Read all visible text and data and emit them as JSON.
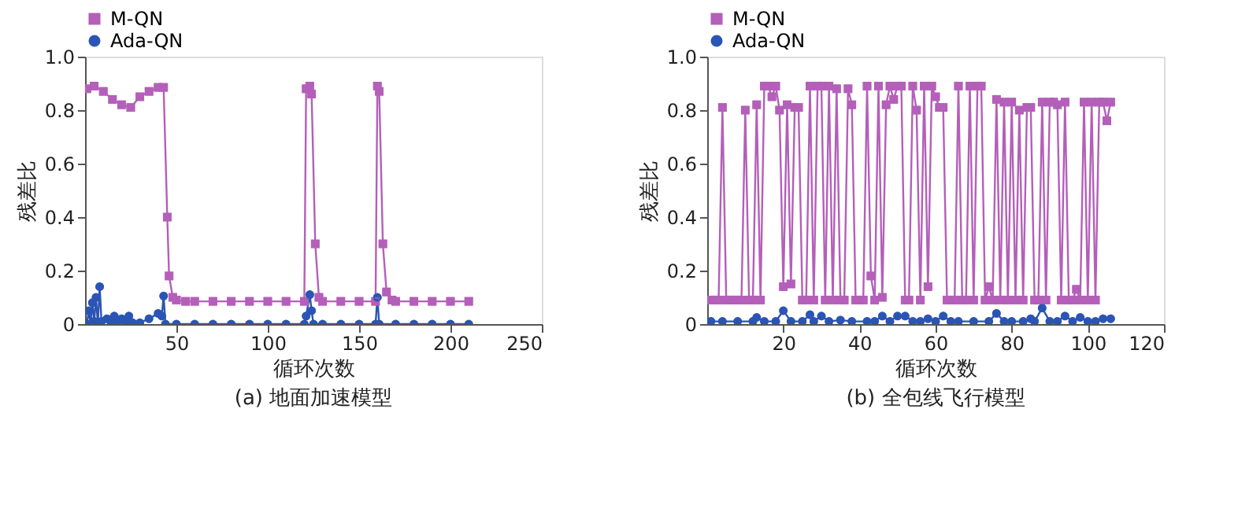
{
  "chart_data": [
    {
      "type": "line",
      "title": "(a) 地面加速模型",
      "xlabel": "循环次数",
      "ylabel": "残差比",
      "xlim": [
        0,
        250
      ],
      "xticks": [
        50,
        100,
        150,
        200,
        250
      ],
      "ylim": [
        0,
        1
      ],
      "yticks": [
        0,
        0.2,
        0.4,
        0.6,
        0.8,
        {
          "value": 1,
          "label": "1.0"
        }
      ],
      "grid": false,
      "legend": "top left",
      "series": [
        {
          "name": "M-QN",
          "color": "#b45fb9",
          "marker": "square",
          "x": [
            1,
            5,
            10,
            15,
            20,
            25,
            30,
            35,
            40,
            43,
            45,
            46,
            48,
            50,
            55,
            60,
            70,
            80,
            90,
            100,
            110,
            120,
            121,
            123,
            124,
            126,
            128,
            130,
            140,
            150,
            159,
            160,
            161,
            163,
            165,
            168,
            170,
            180,
            190,
            200,
            210
          ],
          "values": [
            0.88,
            0.89,
            0.87,
            0.84,
            0.82,
            0.81,
            0.85,
            0.87,
            0.885,
            0.885,
            0.4,
            0.18,
            0.1,
            0.09,
            0.085,
            0.085,
            0.085,
            0.085,
            0.085,
            0.085,
            0.085,
            0.085,
            0.88,
            0.89,
            0.86,
            0.3,
            0.1,
            0.085,
            0.085,
            0.085,
            0.085,
            0.89,
            0.87,
            0.3,
            0.12,
            0.09,
            0.085,
            0.085,
            0.085,
            0.085,
            0.085
          ]
        },
        {
          "name": "Ada-QN",
          "color": "#2b55b5",
          "marker": "circle",
          "x": [
            1,
            2,
            3,
            4,
            5,
            6,
            7,
            8,
            9,
            12,
            14,
            16,
            18,
            20,
            22,
            24,
            26,
            30,
            35,
            40,
            42,
            43,
            44,
            50,
            60,
            70,
            80,
            90,
            100,
            110,
            120,
            121,
            123,
            124,
            125,
            130,
            140,
            150,
            159,
            160,
            161,
            170,
            180,
            190,
            200,
            210
          ],
          "values": [
            0,
            0.05,
            0,
            0.08,
            0.01,
            0.1,
            0,
            0.14,
            0.01,
            0.02,
            0.01,
            0.03,
            0.01,
            0.02,
            0.01,
            0.03,
            0.005,
            0.005,
            0.02,
            0.04,
            0.03,
            0.105,
            0,
            0,
            0,
            0,
            0,
            0,
            0,
            0,
            0,
            0.03,
            0.11,
            0.05,
            0,
            0,
            0,
            0,
            0,
            0.1,
            0,
            0,
            0,
            0,
            0,
            0
          ]
        }
      ]
    },
    {
      "type": "line",
      "title": "(b) 全包线飞行模型",
      "xlabel": "循环次数",
      "ylabel": "残差比",
      "xlim": [
        0,
        120
      ],
      "xticks": [
        20,
        40,
        60,
        80,
        100,
        120
      ],
      "ylim": [
        0,
        1
      ],
      "yticks": [
        0,
        0.2,
        0.4,
        0.6,
        0.8,
        {
          "value": 1,
          "label": "1.0"
        }
      ],
      "grid": false,
      "legend": "top left",
      "series": [
        {
          "name": "M-QN",
          "color": "#b45fb9",
          "marker": "square",
          "x": [
            1,
            2,
            3,
            4,
            5,
            6,
            7,
            8,
            9,
            10,
            11,
            12,
            13,
            14,
            15,
            16,
            17,
            18,
            19,
            20,
            21,
            22,
            23,
            24,
            25,
            26,
            27,
            28,
            29,
            30,
            31,
            32,
            33,
            34,
            35,
            36,
            37,
            38,
            39,
            40,
            41,
            42,
            43,
            44,
            45,
            46,
            47,
            48,
            49,
            50,
            51,
            52,
            53,
            54,
            55,
            56,
            57,
            58,
            59,
            60,
            61,
            62,
            63,
            64,
            65,
            66,
            67,
            68,
            69,
            70,
            71,
            72,
            73,
            74,
            75,
            76,
            77,
            78,
            79,
            80,
            81,
            82,
            83,
            84,
            85,
            86,
            87,
            88,
            89,
            90,
            91,
            92,
            93,
            94,
            95,
            96,
            97,
            98,
            99,
            100,
            101,
            102,
            103,
            104,
            105,
            106
          ],
          "values": [
            0.09,
            0.09,
            0.09,
            0.81,
            0.09,
            0.09,
            0.09,
            0.09,
            0.09,
            0.8,
            0.09,
            0.09,
            0.82,
            0.09,
            0.89,
            0.89,
            0.85,
            0.89,
            0.8,
            0.14,
            0.82,
            0.15,
            0.81,
            0.81,
            0.09,
            0.09,
            0.89,
            0.09,
            0.89,
            0.89,
            0.09,
            0.89,
            0.09,
            0.88,
            0.09,
            0.09,
            0.88,
            0.82,
            0.09,
            0.09,
            0.09,
            0.89,
            0.18,
            0.09,
            0.89,
            0.1,
            0.82,
            0.89,
            0.84,
            0.89,
            0.89,
            0.09,
            0.09,
            0.89,
            0.8,
            0.09,
            0.89,
            0.14,
            0.89,
            0.85,
            0.81,
            0.81,
            0.09,
            0.09,
            0.09,
            0.89,
            0.09,
            0.09,
            0.89,
            0.09,
            0.89,
            0.89,
            0.09,
            0.14,
            0.09,
            0.84,
            0.09,
            0.83,
            0.09,
            0.83,
            0.09,
            0.8,
            0.09,
            0.81,
            0.81,
            0.09,
            0.09,
            0.83,
            0.09,
            0.83,
            0.83,
            0.82,
            0.09,
            0.83,
            0.09,
            0.09,
            0.13,
            0.09,
            0.83,
            0.09,
            0.83,
            0.09,
            0.83,
            0.83,
            0.76,
            0.83
          ]
        },
        {
          "name": "Ada-QN",
          "color": "#2b55b5",
          "marker": "circle",
          "x": [
            1,
            4,
            8,
            12,
            13,
            15,
            18,
            20,
            22,
            25,
            27,
            28,
            30,
            32,
            35,
            38,
            42,
            44,
            46,
            48,
            50,
            52,
            54,
            56,
            58,
            60,
            62,
            64,
            66,
            70,
            74,
            76,
            78,
            80,
            83,
            85,
            86,
            88,
            90,
            92,
            94,
            96,
            98,
            100,
            102,
            104,
            106
          ],
          "values": [
            0.01,
            0.01,
            0.01,
            0.01,
            0.025,
            0.01,
            0.01,
            0.05,
            0.01,
            0.01,
            0.035,
            0.01,
            0.03,
            0.01,
            0.015,
            0.01,
            0.01,
            0.01,
            0.03,
            0.01,
            0.03,
            0.03,
            0.01,
            0.01,
            0.02,
            0.01,
            0.03,
            0.01,
            0.01,
            0.01,
            0.01,
            0.04,
            0.01,
            0.01,
            0.01,
            0.02,
            0.01,
            0.06,
            0.01,
            0.01,
            0.03,
            0.01,
            0.025,
            0.01,
            0.01,
            0.02,
            0.02
          ]
        }
      ]
    }
  ]
}
